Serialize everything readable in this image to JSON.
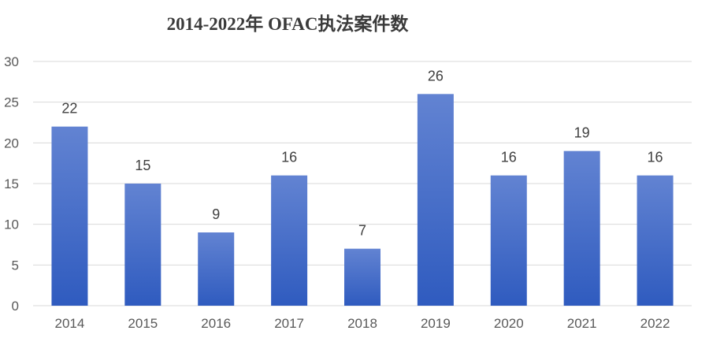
{
  "chart_data": {
    "type": "bar",
    "title": "2014-2022年 OFAC执法案件数",
    "categories": [
      "2014",
      "2015",
      "2016",
      "2017",
      "2018",
      "2019",
      "2020",
      "2021",
      "2022"
    ],
    "values": [
      22,
      15,
      9,
      16,
      7,
      26,
      16,
      19,
      16
    ],
    "ylim": [
      0,
      30
    ],
    "yticks": [
      0,
      5,
      10,
      15,
      20,
      25,
      30
    ],
    "grid": true,
    "data_labels": true,
    "bar_color_top": "#6283d2",
    "bar_color_bottom": "#2f5bbf"
  }
}
